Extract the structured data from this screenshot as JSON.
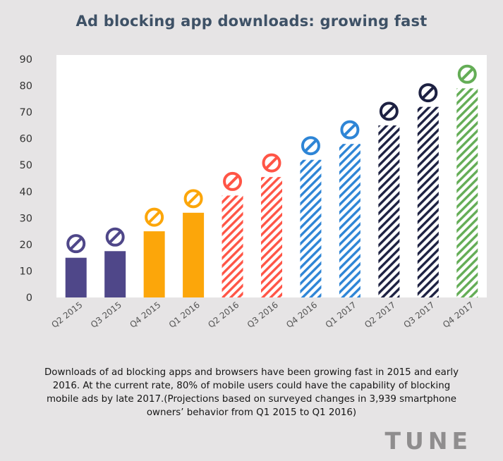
{
  "colors": {
    "background": "#e6e4e5",
    "title": "#3e5166",
    "caption": "#151515",
    "logo": "#8f8d8e",
    "purple": "#4f4789",
    "orange": "#fca60a",
    "red": "#ff5546",
    "blue": "#2e85d6",
    "navy": "#1d2142",
    "green": "#64ad56"
  },
  "chart_data": {
    "type": "bar",
    "title": "Ad blocking app downloads: growing fast",
    "xlabel": "",
    "ylabel": "",
    "ylim": [
      0,
      90
    ],
    "yticks": [
      0,
      10,
      20,
      30,
      40,
      50,
      60,
      70,
      80,
      90
    ],
    "grid": false,
    "categories": [
      "Q2 2015",
      "Q3 2015",
      "Q4 2015",
      "Q1 2016",
      "Q2 2016",
      "Q3 2016",
      "Q4 2016",
      "Q1 2017",
      "Q2 2017",
      "Q3 2017",
      "Q4 2017"
    ],
    "values": [
      15,
      17.5,
      25,
      32,
      38.5,
      45.5,
      52,
      58,
      65,
      72,
      79
    ],
    "bar_colors": [
      "#4f4789",
      "#4f4789",
      "#fca60a",
      "#fca60a",
      "#ff5546",
      "#ff5546",
      "#2e85d6",
      "#2e85d6",
      "#1d2142",
      "#1d2142",
      "#64ad56"
    ],
    "hatched": [
      false,
      false,
      false,
      false,
      true,
      true,
      true,
      true,
      true,
      true,
      true
    ],
    "marker_icon": "no-entry-icon"
  },
  "caption": "Downloads of ad blocking apps and browsers have been growing fast in 2015 and early 2016. At the current rate, 80% of mobile users could have the capability of blocking mobile ads by late 2017.(Projections based on surveyed changes in 3,939 smartphone owners’ behavior from Q1 2015 to Q1 2016)",
  "logo": "TUNE"
}
